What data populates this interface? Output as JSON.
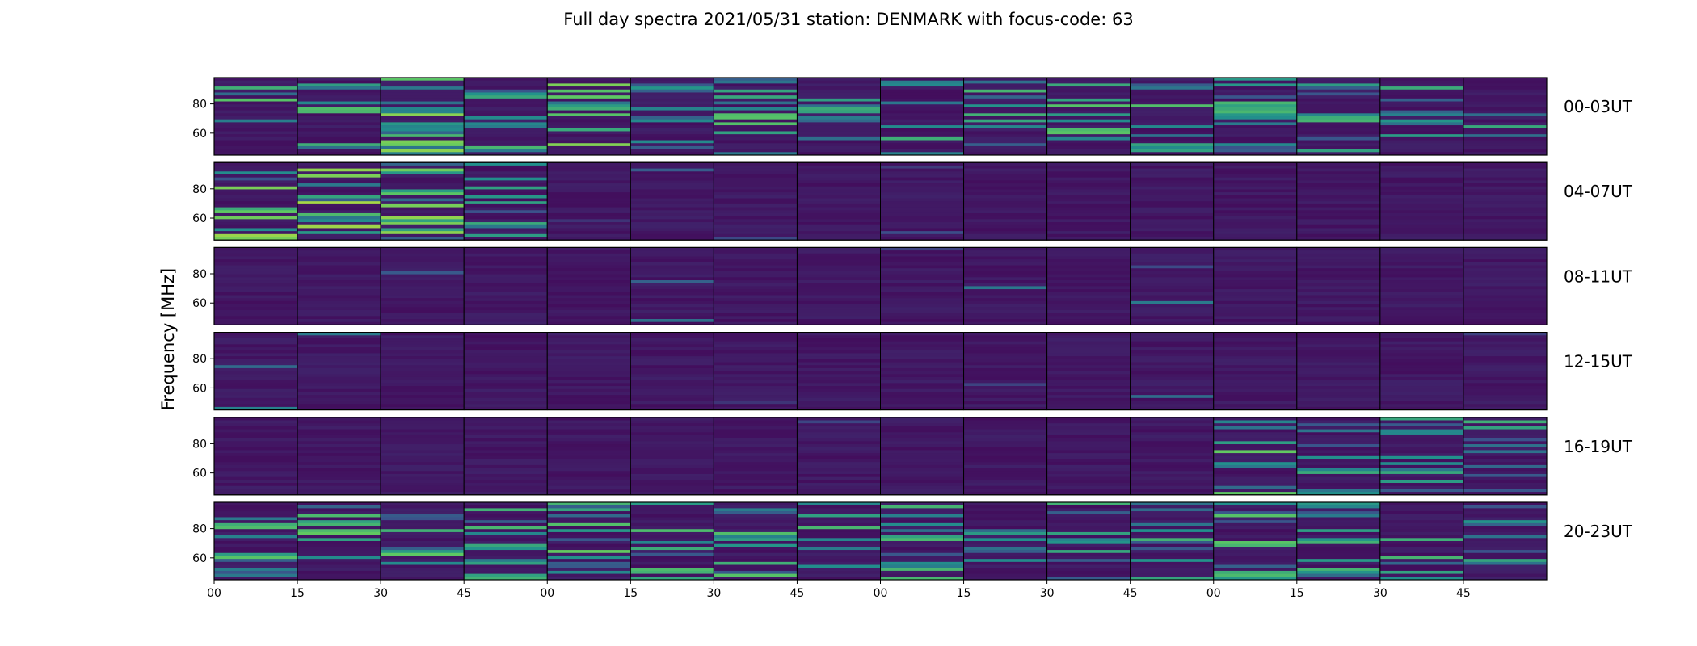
{
  "chart_data": {
    "type": "heatmap",
    "title": "Full day spectra 2021/05/31 station: DENMARK with focus-code: 63",
    "ylabel": "Frequency [MHz]",
    "xlabel": "",
    "colormap": "viridis",
    "ylim": [
      45,
      98
    ],
    "y_ticks": [
      60,
      80
    ],
    "x_tick_labels": [
      "00",
      "15",
      "30",
      "45",
      "00",
      "15",
      "30",
      "45",
      "00",
      "15",
      "30",
      "45",
      "00",
      "15",
      "30",
      "45"
    ],
    "panels_per_row": 16,
    "rows": [
      {
        "label": "00-03UT",
        "activity": [
          0.72,
          0.62,
          0.78,
          0.74,
          0.8,
          0.72,
          0.66,
          0.58,
          0.62,
          0.55,
          0.68,
          0.62,
          0.62,
          0.55,
          0.6,
          0.72
        ]
      },
      {
        "label": "04-07UT",
        "activity": [
          0.85,
          0.85,
          0.8,
          0.78,
          0.08,
          0.06,
          0.05,
          0.05,
          0.07,
          0.04,
          0.04,
          0.05,
          0.05,
          0.04,
          0.04,
          0.04
        ]
      },
      {
        "label": "08-11UT",
        "activity": [
          0.05,
          0.04,
          0.04,
          0.04,
          0.05,
          0.04,
          0.04,
          0.04,
          0.1,
          0.15,
          0.12,
          0.12,
          0.12,
          0.1,
          0.06,
          0.05
        ]
      },
      {
        "label": "12-15UT",
        "activity": [
          0.05,
          0.12,
          0.04,
          0.04,
          0.05,
          0.08,
          0.06,
          0.05,
          0.05,
          0.05,
          0.05,
          0.04,
          0.04,
          0.04,
          0.04,
          0.04
        ]
      },
      {
        "label": "16-19UT",
        "activity": [
          0.05,
          0.05,
          0.05,
          0.05,
          0.05,
          0.05,
          0.05,
          0.05,
          0.06,
          0.06,
          0.05,
          0.08,
          0.75,
          0.5,
          0.55,
          0.62
        ]
      },
      {
        "label": "20-23UT",
        "activity": [
          0.72,
          0.7,
          0.66,
          0.6,
          0.72,
          0.62,
          0.7,
          0.58,
          0.58,
          0.58,
          0.66,
          0.66,
          0.64,
          0.58,
          0.6,
          0.62
        ]
      }
    ],
    "grid": false
  }
}
